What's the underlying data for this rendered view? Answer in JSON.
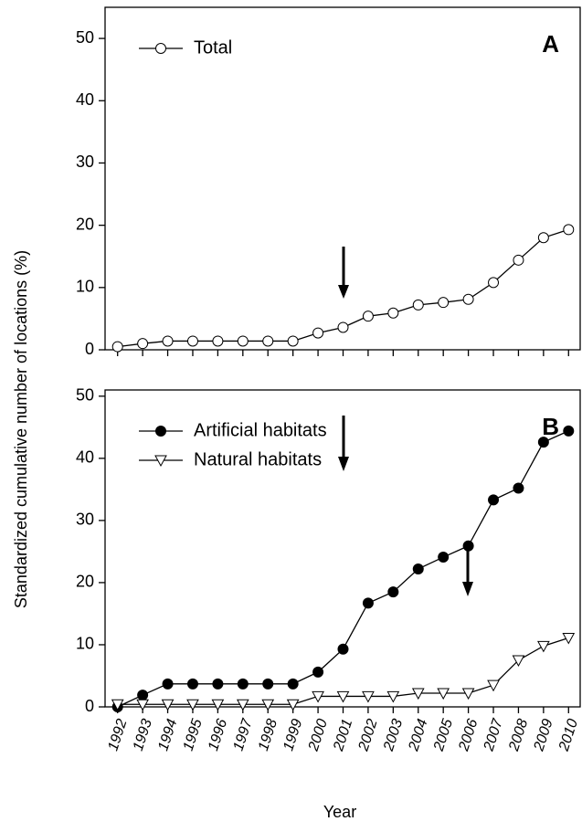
{
  "ylabel": "Standardized cumulative number of locations (%)",
  "xlabel": "Year",
  "chart_data": [
    {
      "type": "line",
      "annotation": "A",
      "x": [
        1992,
        1993,
        1994,
        1995,
        1996,
        1997,
        1998,
        1999,
        2000,
        2001,
        2002,
        2003,
        2004,
        2005,
        2006,
        2007,
        2008,
        2009,
        2010
      ],
      "xlim": [
        1991.5,
        2010.5
      ],
      "ylim": [
        0,
        55
      ],
      "yticks": [
        0,
        10,
        20,
        30,
        40,
        50
      ],
      "series": [
        {
          "name": "Total",
          "color": "#000000",
          "marker": "circle-open",
          "values": [
            0.5,
            1,
            1.4,
            1.4,
            1.4,
            1.4,
            1.4,
            1.4,
            2.7,
            3.6,
            5.4,
            5.9,
            7.2,
            7.6,
            8.1,
            10.8,
            14.4,
            18,
            19.3
          ]
        }
      ]
    },
    {
      "type": "line",
      "annotation": "B",
      "x": [
        1992,
        1993,
        1994,
        1995,
        1996,
        1997,
        1998,
        1999,
        2000,
        2001,
        2002,
        2003,
        2004,
        2005,
        2006,
        2007,
        2008,
        2009,
        2010
      ],
      "xlim": [
        1991.5,
        2010.5
      ],
      "ylim": [
        0,
        51
      ],
      "yticks": [
        0,
        10,
        20,
        30,
        40,
        50
      ],
      "series": [
        {
          "name": "Artificial habitats",
          "color": "#000000",
          "marker": "circle-filled",
          "values": [
            0,
            1.9,
            3.7,
            3.7,
            3.7,
            3.7,
            3.7,
            3.7,
            5.6,
            9.3,
            16.7,
            18.5,
            22.2,
            24.1,
            25.9,
            33.3,
            35.2,
            42.6,
            44.4
          ]
        },
        {
          "name": "Natural habitats",
          "color": "#000000",
          "marker": "triangle-open",
          "values": [
            0.4,
            0.4,
            0.4,
            0.4,
            0.4,
            0.4,
            0.4,
            0.4,
            1.7,
            1.7,
            1.7,
            1.7,
            2.2,
            2.2,
            2.2,
            3.5,
            7.5,
            9.8,
            11.1
          ]
        }
      ]
    }
  ]
}
